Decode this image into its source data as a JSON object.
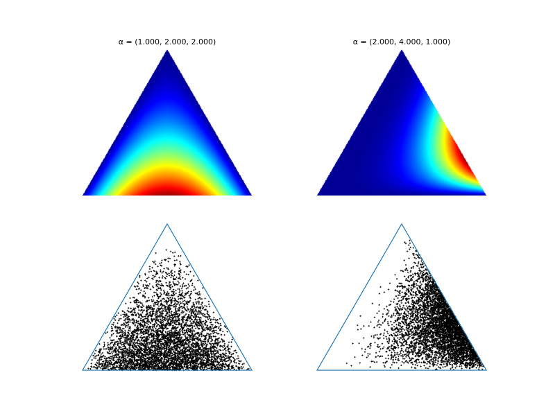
{
  "chart_data": [
    {
      "type": "heatmap",
      "title": "α = (1.000, 2.000, 2.000)",
      "alpha": [
        1.0,
        2.0,
        2.0
      ],
      "colormap": "jet",
      "domain": "2-simplex (equilateral triangle)",
      "grid": false,
      "axes_visible": false
    },
    {
      "type": "heatmap",
      "title": "α = (2.000, 4.000, 1.000)",
      "alpha": [
        2.0,
        4.0,
        1.0
      ],
      "colormap": "jet",
      "domain": "2-simplex (equilateral triangle)",
      "grid": false,
      "axes_visible": false
    },
    {
      "type": "scatter",
      "alpha": [
        1.0,
        2.0,
        2.0
      ],
      "n_points": 5000,
      "marker": "+",
      "marker_color": "#000000",
      "outline_color": "#1f77b4",
      "grid": false,
      "axes_visible": false
    },
    {
      "type": "scatter",
      "alpha": [
        2.0,
        4.0,
        1.0
      ],
      "n_points": 5000,
      "marker": "+",
      "marker_color": "#000000",
      "outline_color": "#1f77b4",
      "grid": false,
      "axes_visible": false
    }
  ]
}
